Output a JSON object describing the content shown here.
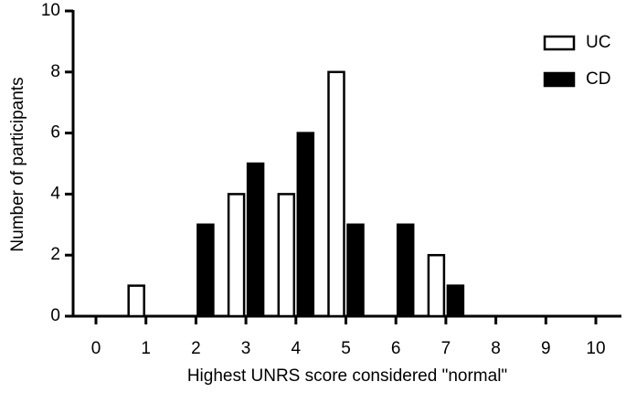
{
  "chart_data": {
    "type": "bar",
    "xlabel": "Highest UNRS score considered \"normal\"",
    "ylabel": "Number of participants",
    "categories": [
      "0",
      "1",
      "2",
      "3",
      "4",
      "5",
      "6",
      "7",
      "8",
      "9",
      "10"
    ],
    "series": [
      {
        "name": "UC",
        "color": "#ffffff",
        "values": [
          0,
          1,
          0,
          4,
          4,
          8,
          0,
          2,
          0,
          0,
          0
        ]
      },
      {
        "name": "CD",
        "color": "#000000",
        "values": [
          0,
          0,
          3,
          5,
          6,
          3,
          3,
          1,
          0,
          0,
          0
        ]
      }
    ],
    "ylim": [
      0,
      10
    ],
    "yticks": [
      0,
      2,
      4,
      6,
      8,
      10
    ],
    "grid": false,
    "legend": "upper right"
  }
}
